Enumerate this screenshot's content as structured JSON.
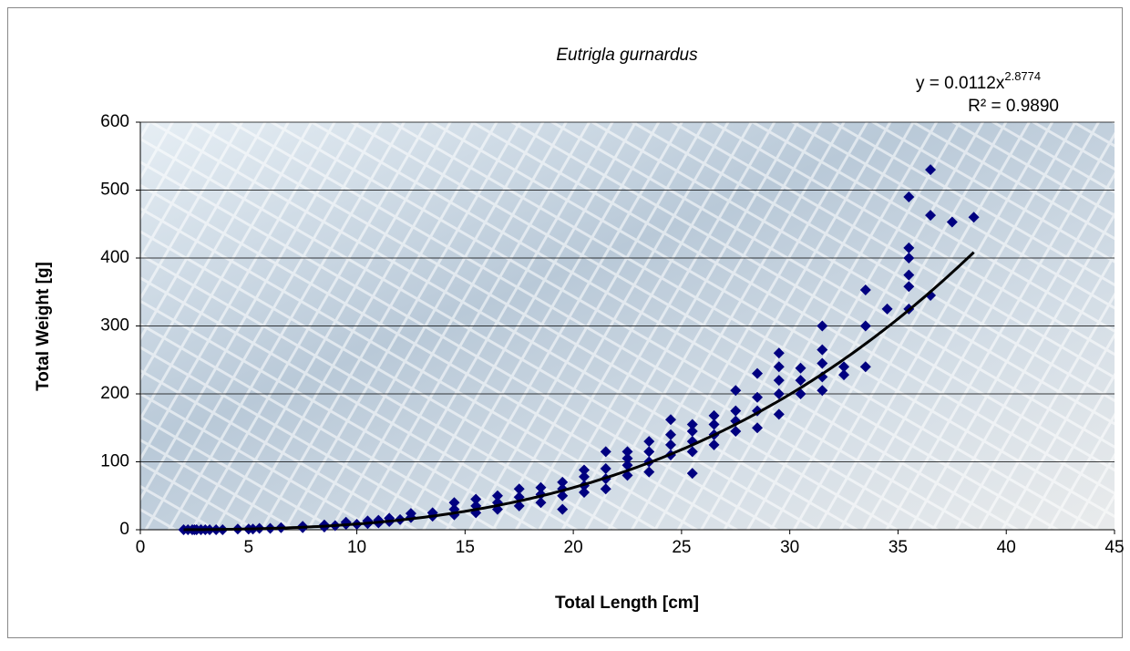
{
  "chart_data": {
    "type": "scatter",
    "title": "Eutrigla gurnardus",
    "x_label": "Total Length [cm]",
    "y_label": "Total Weight [g]",
    "xlim": [
      0,
      45
    ],
    "xticks": [
      0,
      5,
      10,
      15,
      20,
      25,
      30,
      35,
      40,
      45
    ],
    "ylim": [
      0,
      600
    ],
    "yticks": [
      0,
      100,
      200,
      300,
      400,
      500,
      600
    ],
    "grid": true,
    "series": [
      {
        "color": "#000080",
        "x": [
          2.0,
          2.2,
          2.4,
          2.5,
          2.6,
          2.8,
          3.0,
          3.2,
          3.5,
          3.8,
          4.5,
          5.0,
          5.2,
          5.5,
          6.0,
          6.5,
          7.5,
          7.5,
          8.5,
          8.5,
          9.0,
          9.5,
          9.5,
          10.0,
          10.5,
          10.5,
          11.0,
          11.0,
          11.5,
          11.5,
          12.0,
          12.5,
          12.5,
          13.5,
          13.5,
          14.5,
          14.5,
          14.5,
          15.5,
          15.5,
          15.5,
          16.5,
          16.5,
          16.5,
          17.5,
          17.5,
          17.5,
          18.5,
          18.5,
          18.5,
          19.5,
          19.5,
          19.5,
          19.5,
          20.5,
          20.5,
          20.5,
          20.5,
          21.5,
          21.5,
          21.5,
          21.5,
          22.5,
          22.5,
          22.5,
          22.5,
          23.5,
          23.5,
          23.5,
          23.5,
          24.5,
          24.5,
          24.5,
          24.5,
          25.5,
          25.5,
          25.5,
          25.5,
          25.5,
          26.5,
          26.5,
          26.5,
          26.5,
          27.5,
          27.5,
          27.5,
          27.5,
          28.5,
          28.5,
          28.5,
          28.5,
          29.5,
          29.5,
          29.5,
          29.5,
          29.5,
          30.5,
          30.5,
          30.5,
          31.5,
          31.5,
          31.5,
          31.5,
          31.5,
          32.5,
          32.5,
          33.5,
          33.5,
          33.5,
          34.5,
          35.5,
          35.5,
          35.5,
          35.5,
          35.5,
          35.5,
          36.5,
          36.5,
          36.5,
          37.5,
          38.5
        ],
        "y": [
          0,
          0,
          0,
          0,
          0,
          0,
          0,
          0,
          0,
          0,
          1,
          1,
          1,
          2,
          2,
          3,
          3,
          5,
          4,
          7,
          6,
          8,
          11,
          8,
          9,
          13,
          10,
          14,
          12,
          17,
          15,
          18,
          24,
          20,
          25,
          22,
          30,
          40,
          25,
          35,
          45,
          30,
          40,
          50,
          35,
          48,
          60,
          40,
          52,
          62,
          30,
          50,
          60,
          70,
          55,
          65,
          78,
          88,
          60,
          75,
          90,
          115,
          80,
          95,
          105,
          115,
          85,
          100,
          115,
          130,
          110,
          125,
          140,
          162,
          83,
          115,
          130,
          145,
          155,
          125,
          140,
          155,
          168,
          145,
          160,
          175,
          205,
          150,
          175,
          195,
          230,
          170,
          200,
          220,
          240,
          260,
          200,
          220,
          238,
          205,
          225,
          245,
          265,
          300,
          228,
          240,
          240,
          300,
          353,
          325,
          325,
          358,
          375,
          400,
          415,
          490,
          345,
          463,
          530,
          453,
          460
        ]
      }
    ],
    "trendline": {
      "color": "#000000",
      "coefficient": 0.0112,
      "exponent": 2.8774,
      "xrange": [
        2,
        38.5
      ],
      "equation": "y = 0.0112x",
      "equation_exponent": "2.8774",
      "r_squared": "R² = 0.9890"
    }
  }
}
